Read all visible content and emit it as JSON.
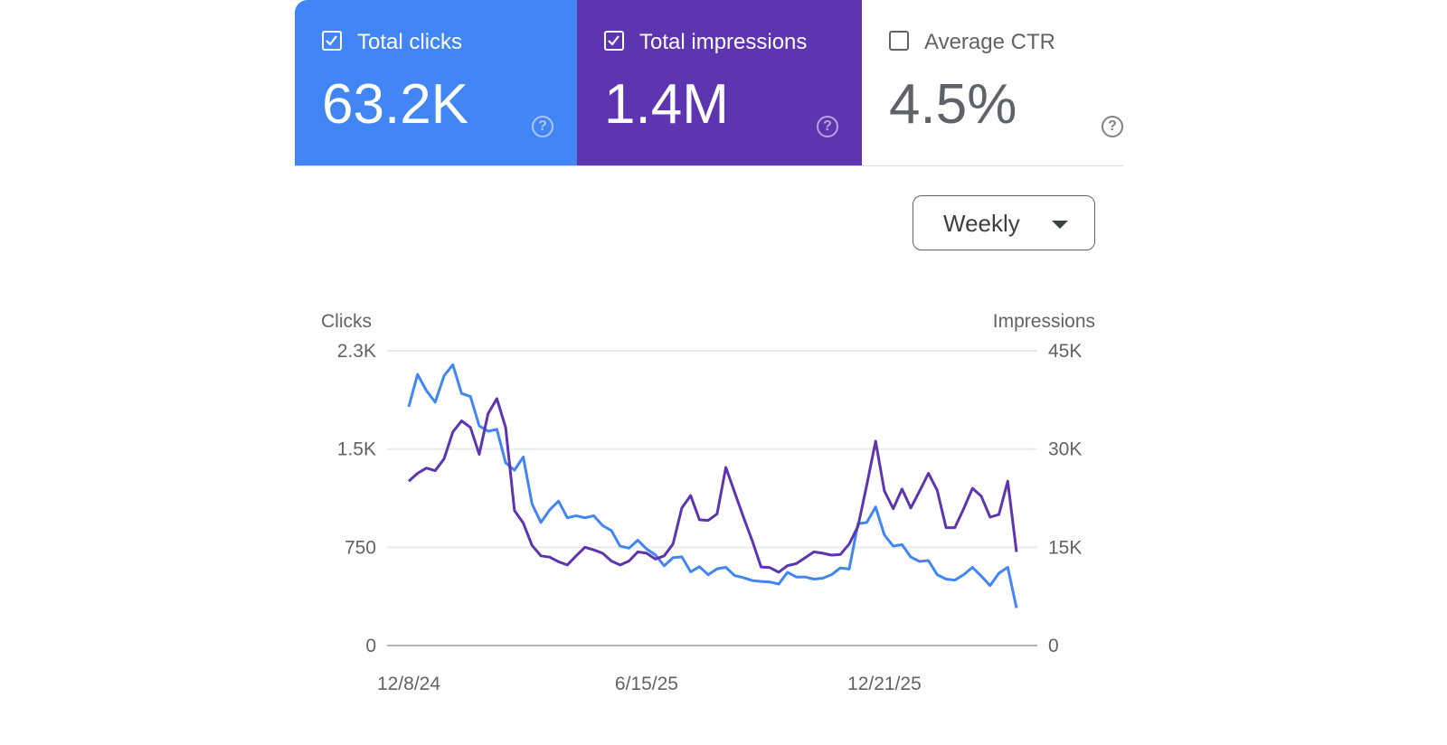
{
  "metrics": [
    {
      "label": "Total clicks",
      "value": "63.2K",
      "checked": true,
      "color": "#4285f4"
    },
    {
      "label": "Total impressions",
      "value": "1.4M",
      "checked": true,
      "color": "#5e35b1"
    },
    {
      "label": "Average CTR",
      "value": "4.5%",
      "checked": false,
      "color": "#ffffff"
    }
  ],
  "help_icon": "question-circle-icon",
  "dropdown": {
    "selected": "Weekly",
    "icon": "caret-down-icon"
  },
  "chart_data": {
    "type": "line",
    "grid": true,
    "left_axis": {
      "label": "Clicks",
      "ticks": [
        "0",
        "750",
        "1.5K",
        "2.3K"
      ],
      "tick_values": [
        0,
        750,
        1500,
        2250
      ],
      "range": [
        0,
        2250
      ]
    },
    "right_axis": {
      "label": "Impressions",
      "ticks": [
        "0",
        "15K",
        "30K",
        "45K"
      ],
      "tick_values": [
        0,
        15000,
        30000,
        45000
      ],
      "range": [
        0,
        45000
      ]
    },
    "x_ticks": [
      {
        "index": 0,
        "label": "12/8/24"
      },
      {
        "index": 27,
        "label": "6/15/25"
      },
      {
        "index": 54,
        "label": "12/21/25"
      }
    ],
    "series": [
      {
        "name": "Clicks",
        "axis": "left",
        "color": "#4285f4",
        "values": [
          1823,
          2070,
          1946,
          1857,
          2059,
          2144,
          1924,
          1901,
          1677,
          1636,
          1650,
          1395,
          1339,
          1440,
          1081,
          939,
          1036,
          1103,
          975,
          991,
          975,
          991,
          916,
          878,
          759,
          743,
          804,
          737,
          692,
          609,
          670,
          677,
          563,
          602,
          541,
          586,
          597,
          534,
          518,
          496,
          489,
          485,
          469,
          559,
          523,
          523,
          507,
          514,
          541,
          593,
          584,
          930,
          939,
          1058,
          844,
          759,
          770,
          676,
          642,
          649,
          541,
          507,
          500,
          541,
          597,
          530,
          458,
          552,
          597,
          287
        ]
      },
      {
        "name": "Impressions",
        "axis": "right",
        "color": "#5e35b1",
        "values": [
          25100,
          26300,
          27100,
          26700,
          28500,
          32600,
          34300,
          33300,
          29200,
          35400,
          37700,
          33300,
          20600,
          18700,
          15300,
          13700,
          13500,
          12800,
          12300,
          13700,
          15000,
          14600,
          14100,
          12900,
          12300,
          12900,
          14300,
          14100,
          13200,
          13700,
          15500,
          21000,
          22900,
          19200,
          19100,
          20100,
          27200,
          23400,
          19600,
          16000,
          12000,
          11900,
          11200,
          12200,
          12500,
          13400,
          14300,
          14100,
          13800,
          13900,
          15500,
          18200,
          24500,
          31200,
          23600,
          20900,
          23900,
          21000,
          23600,
          26300,
          23700,
          18000,
          18000,
          20900,
          24000,
          22800,
          19600,
          20000,
          25100,
          14300
        ]
      }
    ]
  }
}
